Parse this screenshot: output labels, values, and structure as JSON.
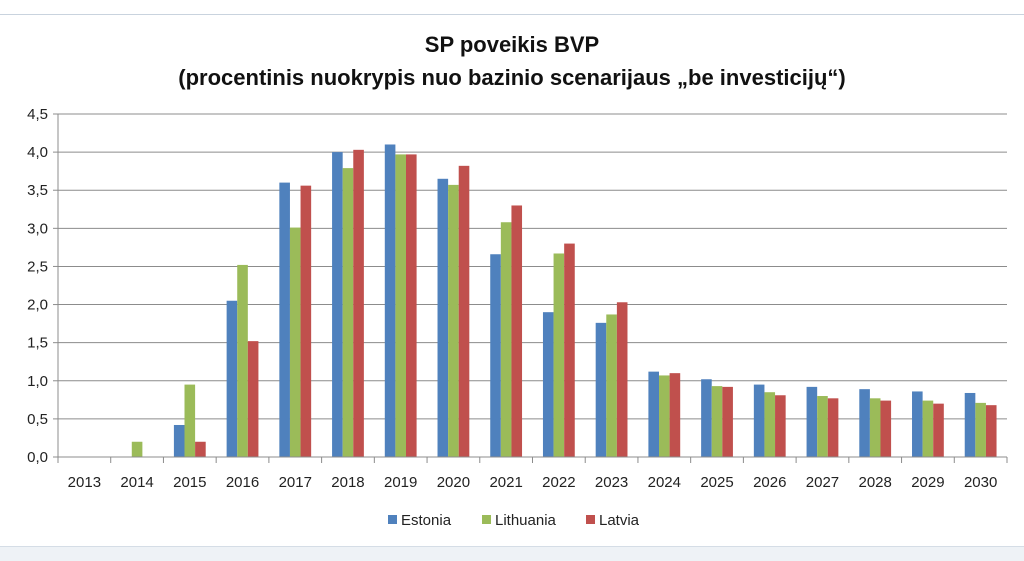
{
  "chart_data": {
    "type": "bar",
    "title": "SP poveikis BVP",
    "subtitle": "(procentinis nuokrypis nuo bazinio scenarijaus „be investicijų“)",
    "xlabel": "",
    "ylabel": "",
    "ylim": [
      0,
      4.5
    ],
    "y_ticks": [
      "0,0",
      "0,5",
      "1,0",
      "1,5",
      "2,0",
      "2,5",
      "3,0",
      "3,5",
      "4,0",
      "4,5"
    ],
    "grid": true,
    "legend_position": "bottom",
    "categories": [
      "2013",
      "2014",
      "2015",
      "2016",
      "2017",
      "2018",
      "2019",
      "2020",
      "2021",
      "2022",
      "2023",
      "2024",
      "2025",
      "2026",
      "2027",
      "2028",
      "2029",
      "2030"
    ],
    "series": [
      {
        "name": "Estonia",
        "color": "#4f81bd",
        "values": [
          0,
          0,
          0.42,
          2.05,
          3.6,
          4.0,
          4.1,
          3.65,
          2.66,
          1.9,
          1.76,
          1.12,
          1.02,
          0.95,
          0.92,
          0.89,
          0.86,
          0.84
        ]
      },
      {
        "name": "Lithuania",
        "color": "#9bbb59",
        "values": [
          0,
          0.2,
          0.95,
          2.52,
          3.01,
          3.79,
          3.97,
          3.57,
          3.08,
          2.67,
          1.87,
          1.07,
          0.93,
          0.85,
          0.8,
          0.77,
          0.74,
          0.71
        ]
      },
      {
        "name": "Latvia",
        "color": "#c0504d",
        "values": [
          0,
          0,
          0.2,
          1.52,
          3.56,
          4.03,
          3.97,
          3.82,
          3.3,
          2.8,
          2.03,
          1.1,
          0.92,
          0.81,
          0.77,
          0.74,
          0.7,
          0.68
        ]
      }
    ]
  }
}
